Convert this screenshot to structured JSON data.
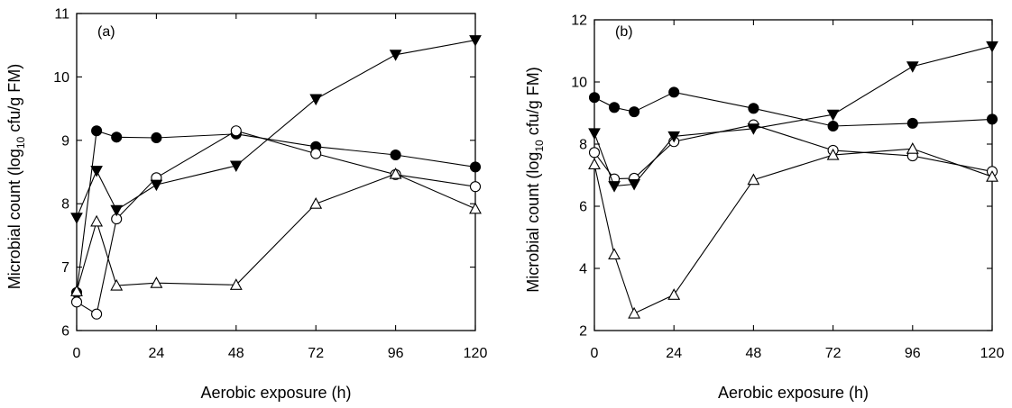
{
  "chart_data": [
    {
      "type": "line",
      "panel_label": "(a)",
      "xlabel": "Aerobic exposure (h)",
      "ylabel": {
        "prefix": "Microbial count (log",
        "sub": "10",
        "suffix": " cfu/g FM)"
      },
      "xlim": [
        0,
        120
      ],
      "ylim": [
        6,
        11
      ],
      "xticks": [
        0,
        24,
        48,
        72,
        96,
        120
      ],
      "yticks": [
        6,
        7,
        8,
        9,
        10,
        11
      ],
      "grid": false,
      "series": [
        {
          "marker": "filled-circle",
          "x": [
            0,
            6,
            12,
            24,
            48,
            72,
            96,
            120
          ],
          "y": [
            6.6,
            9.15,
            9.05,
            9.04,
            9.1,
            8.9,
            8.77,
            8.58
          ]
        },
        {
          "marker": "open-circle",
          "x": [
            0,
            6,
            12,
            24,
            48,
            72,
            96,
            120
          ],
          "y": [
            6.45,
            6.26,
            7.76,
            8.41,
            9.15,
            8.79,
            8.46,
            8.27
          ]
        },
        {
          "marker": "filled-triangle-down",
          "x": [
            0,
            6,
            12,
            24,
            48,
            72,
            96,
            120
          ],
          "y": [
            7.78,
            8.52,
            7.9,
            8.3,
            8.6,
            9.65,
            10.35,
            10.58
          ]
        },
        {
          "marker": "open-triangle-up",
          "x": [
            0,
            6,
            12,
            24,
            48,
            72,
            96,
            120
          ],
          "y": [
            6.62,
            7.72,
            6.71,
            6.75,
            6.72,
            8.0,
            8.47,
            7.92
          ]
        }
      ]
    },
    {
      "type": "line",
      "panel_label": "(b)",
      "xlabel": "Aerobic exposure (h)",
      "ylabel": {
        "prefix": "Microbial count (log",
        "sub": "10",
        "suffix": " cfu/g FM)"
      },
      "xlim": [
        0,
        120
      ],
      "ylim": [
        2,
        12
      ],
      "xticks": [
        0,
        24,
        48,
        72,
        96,
        120
      ],
      "yticks": [
        2,
        4,
        6,
        8,
        10,
        12
      ],
      "grid": false,
      "series": [
        {
          "marker": "filled-circle",
          "x": [
            0,
            6,
            12,
            24,
            48,
            72,
            96,
            120
          ],
          "y": [
            9.5,
            9.18,
            9.04,
            9.67,
            9.15,
            8.58,
            8.67,
            8.8
          ]
        },
        {
          "marker": "open-circle",
          "x": [
            0,
            6,
            12,
            24,
            48,
            72,
            96,
            120
          ],
          "y": [
            7.73,
            6.88,
            6.9,
            8.08,
            8.62,
            7.8,
            7.62,
            7.12
          ]
        },
        {
          "marker": "filled-triangle-down",
          "x": [
            0,
            6,
            12,
            24,
            48,
            72,
            96,
            120
          ],
          "y": [
            8.35,
            6.65,
            6.71,
            8.25,
            8.5,
            8.95,
            10.5,
            11.15
          ]
        },
        {
          "marker": "open-triangle-up",
          "x": [
            0,
            6,
            12,
            24,
            48,
            72,
            96,
            120
          ],
          "y": [
            7.35,
            4.45,
            2.55,
            3.15,
            6.85,
            7.65,
            7.85,
            6.95
          ]
        }
      ]
    }
  ]
}
